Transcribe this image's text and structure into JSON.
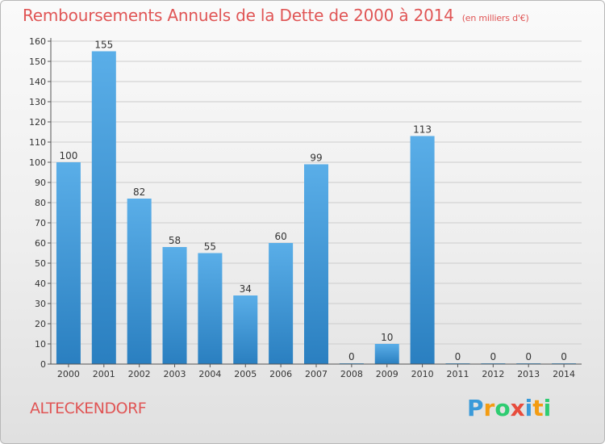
{
  "title": "Remboursements Annuels de la Dette de 2000 à 2014",
  "title_unit": "(en milliers d'€)",
  "commune": "ALTECKENDORF",
  "logo": {
    "letters": [
      "P",
      "r",
      "o",
      "x",
      "i",
      "t",
      "i"
    ],
    "colors": [
      "#3a9ad9",
      "#f39c12",
      "#2ecc71",
      "#e74c3c",
      "#3a9ad9",
      "#f39c12",
      "#2ecc71"
    ]
  },
  "colors": {
    "title": "#e05555",
    "bar_top": "#5aaee8",
    "bar_bottom": "#2a7fc0",
    "axis": "#555555",
    "grid": "#cccccc"
  },
  "chart_data": {
    "type": "bar",
    "categories": [
      "2000",
      "2001",
      "2002",
      "2003",
      "2004",
      "2005",
      "2006",
      "2007",
      "2008",
      "2009",
      "2010",
      "2011",
      "2012",
      "2013",
      "2014"
    ],
    "values": [
      100,
      155,
      82,
      58,
      55,
      34,
      60,
      99,
      0,
      10,
      113,
      0,
      0,
      0,
      0
    ],
    "ylim": [
      0,
      160
    ],
    "yticks": [
      0,
      10,
      20,
      30,
      40,
      50,
      60,
      70,
      80,
      90,
      100,
      110,
      120,
      130,
      140,
      150,
      160
    ],
    "grid": true,
    "xlabel": "",
    "ylabel": ""
  }
}
